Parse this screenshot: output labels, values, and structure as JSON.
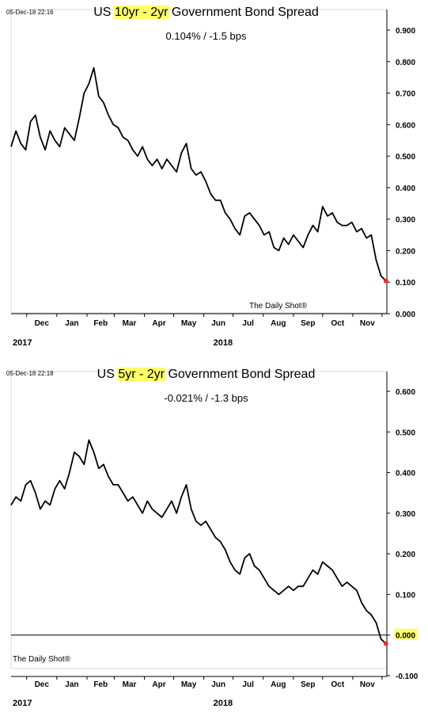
{
  "charts": [
    {
      "timestamp": "05-Dec-18 22:16",
      "title_prefix": "US ",
      "title_highlight": "10yr - 2yr",
      "title_suffix": " Government Bond Spread",
      "subtitle": "0.104%  /  -1.5 bps",
      "credit": "The Daily Shot®",
      "highlight_color": "#ffff66",
      "line_color": "#000000",
      "marker_color": "#e8312a"
    },
    {
      "timestamp": "05-Dec-18 22:18",
      "title_prefix": "US ",
      "title_highlight": "5yr - 2yr",
      "title_suffix": " Government Bond Spread",
      "subtitle": "-0.021%  /  -1.3 bps",
      "credit": "The Daily Shot®",
      "highlight_color": "#ffff66",
      "line_color": "#000000",
      "marker_color": "#e8312a",
      "highlighted_tick": "0.000"
    }
  ],
  "chart_data": [
    {
      "type": "line",
      "title": "US 10yr - 2yr Government Bond Spread",
      "x_start": "2017-11-15",
      "x_end": "2018-12-06",
      "ylim": [
        0.0,
        0.9
      ],
      "yticks": [
        "0.900",
        "0.800",
        "0.700",
        "0.600",
        "0.500",
        "0.400",
        "0.300",
        "0.200",
        "0.100",
        "0.000"
      ],
      "ytick_values": [
        0.9,
        0.8,
        0.7,
        0.6,
        0.5,
        0.4,
        0.3,
        0.2,
        0.1,
        0.0
      ],
      "months": [
        "Dec",
        "Jan",
        "Feb",
        "Mar",
        "Apr",
        "May",
        "Jun",
        "Jul",
        "Aug",
        "Sep",
        "Oct",
        "Nov"
      ],
      "month_dates": [
        "2017-12-01",
        "2018-01-01",
        "2018-02-01",
        "2018-03-01",
        "2018-04-01",
        "2018-05-01",
        "2018-06-01",
        "2018-07-01",
        "2018-08-01",
        "2018-09-01",
        "2018-10-01",
        "2018-11-01",
        "2018-12-01"
      ],
      "years": [
        {
          "label": "2017",
          "date": "2017-11-15"
        },
        {
          "label": "2018",
          "date": "2018-06-01"
        }
      ],
      "grid": false,
      "x": [
        "2017-11-15",
        "2017-11-20",
        "2017-11-25",
        "2017-11-30",
        "2017-12-05",
        "2017-12-10",
        "2017-12-15",
        "2017-12-20",
        "2017-12-25",
        "2017-12-30",
        "2018-01-04",
        "2018-01-09",
        "2018-01-14",
        "2018-01-19",
        "2018-01-24",
        "2018-01-29",
        "2018-02-03",
        "2018-02-08",
        "2018-02-13",
        "2018-02-18",
        "2018-02-23",
        "2018-02-28",
        "2018-03-05",
        "2018-03-10",
        "2018-03-15",
        "2018-03-20",
        "2018-03-25",
        "2018-03-30",
        "2018-04-04",
        "2018-04-09",
        "2018-04-14",
        "2018-04-19",
        "2018-04-24",
        "2018-04-29",
        "2018-05-04",
        "2018-05-09",
        "2018-05-14",
        "2018-05-19",
        "2018-05-24",
        "2018-05-29",
        "2018-06-03",
        "2018-06-08",
        "2018-06-13",
        "2018-06-18",
        "2018-06-23",
        "2018-06-28",
        "2018-07-03",
        "2018-07-08",
        "2018-07-13",
        "2018-07-18",
        "2018-07-23",
        "2018-07-28",
        "2018-08-02",
        "2018-08-07",
        "2018-08-12",
        "2018-08-17",
        "2018-08-22",
        "2018-08-27",
        "2018-09-01",
        "2018-09-06",
        "2018-09-11",
        "2018-09-16",
        "2018-09-21",
        "2018-09-26",
        "2018-10-01",
        "2018-10-06",
        "2018-10-11",
        "2018-10-16",
        "2018-10-21",
        "2018-10-26",
        "2018-10-31",
        "2018-11-05",
        "2018-11-10",
        "2018-11-15",
        "2018-11-20",
        "2018-11-25",
        "2018-11-30",
        "2018-12-05"
      ],
      "series": [
        {
          "values": [
            0.53,
            0.58,
            0.54,
            0.52,
            0.61,
            0.63,
            0.56,
            0.52,
            0.58,
            0.55,
            0.53,
            0.59,
            0.57,
            0.55,
            0.62,
            0.7,
            0.73,
            0.78,
            0.69,
            0.67,
            0.63,
            0.6,
            0.59,
            0.56,
            0.55,
            0.52,
            0.5,
            0.53,
            0.49,
            0.47,
            0.49,
            0.46,
            0.49,
            0.47,
            0.45,
            0.51,
            0.54,
            0.46,
            0.44,
            0.45,
            0.42,
            0.38,
            0.36,
            0.36,
            0.32,
            0.3,
            0.27,
            0.25,
            0.31,
            0.32,
            0.3,
            0.28,
            0.25,
            0.26,
            0.21,
            0.2,
            0.24,
            0.22,
            0.25,
            0.23,
            0.21,
            0.25,
            0.28,
            0.26,
            0.34,
            0.31,
            0.32,
            0.29,
            0.28,
            0.28,
            0.29,
            0.26,
            0.27,
            0.24,
            0.25,
            0.17,
            0.12,
            0.104
          ],
          "color": "#000000"
        }
      ],
      "last_point": {
        "x": "2018-12-05",
        "y": 0.104
      }
    },
    {
      "type": "line",
      "title": "US 5yr - 2yr Government Bond Spread",
      "x_start": "2017-11-15",
      "x_end": "2018-12-06",
      "ylim": [
        -0.1,
        0.6
      ],
      "yticks": [
        "0.600",
        "0.500",
        "0.400",
        "0.300",
        "0.200",
        "0.100",
        "0.000",
        "-0.100"
      ],
      "ytick_values": [
        0.6,
        0.5,
        0.4,
        0.3,
        0.2,
        0.1,
        0.0,
        -0.1
      ],
      "months": [
        "Dec",
        "Jan",
        "Feb",
        "Mar",
        "Apr",
        "May",
        "Jun",
        "Jul",
        "Aug",
        "Sep",
        "Oct",
        "Nov"
      ],
      "month_dates": [
        "2017-12-01",
        "2018-01-01",
        "2018-02-01",
        "2018-03-01",
        "2018-04-01",
        "2018-05-01",
        "2018-06-01",
        "2018-07-01",
        "2018-08-01",
        "2018-09-01",
        "2018-10-01",
        "2018-11-01",
        "2018-12-01"
      ],
      "years": [
        {
          "label": "2017",
          "date": "2017-11-15"
        },
        {
          "label": "2018",
          "date": "2018-06-01"
        }
      ],
      "grid": false,
      "zero_line": true,
      "x": [
        "2017-11-15",
        "2017-11-20",
        "2017-11-25",
        "2017-11-30",
        "2017-12-05",
        "2017-12-10",
        "2017-12-15",
        "2017-12-20",
        "2017-12-25",
        "2017-12-30",
        "2018-01-04",
        "2018-01-09",
        "2018-01-14",
        "2018-01-19",
        "2018-01-24",
        "2018-01-29",
        "2018-02-03",
        "2018-02-08",
        "2018-02-13",
        "2018-02-18",
        "2018-02-23",
        "2018-02-28",
        "2018-03-05",
        "2018-03-10",
        "2018-03-15",
        "2018-03-20",
        "2018-03-25",
        "2018-03-30",
        "2018-04-04",
        "2018-04-09",
        "2018-04-14",
        "2018-04-19",
        "2018-04-24",
        "2018-04-29",
        "2018-05-04",
        "2018-05-09",
        "2018-05-14",
        "2018-05-19",
        "2018-05-24",
        "2018-05-29",
        "2018-06-03",
        "2018-06-08",
        "2018-06-13",
        "2018-06-18",
        "2018-06-23",
        "2018-06-28",
        "2018-07-03",
        "2018-07-08",
        "2018-07-13",
        "2018-07-18",
        "2018-07-23",
        "2018-07-28",
        "2018-08-02",
        "2018-08-07",
        "2018-08-12",
        "2018-08-17",
        "2018-08-22",
        "2018-08-27",
        "2018-09-01",
        "2018-09-06",
        "2018-09-11",
        "2018-09-16",
        "2018-09-21",
        "2018-09-26",
        "2018-10-01",
        "2018-10-06",
        "2018-10-11",
        "2018-10-16",
        "2018-10-21",
        "2018-10-26",
        "2018-10-31",
        "2018-11-05",
        "2018-11-10",
        "2018-11-15",
        "2018-11-20",
        "2018-11-25",
        "2018-11-30",
        "2018-12-05"
      ],
      "series": [
        {
          "values": [
            0.32,
            0.34,
            0.33,
            0.37,
            0.38,
            0.35,
            0.31,
            0.33,
            0.32,
            0.36,
            0.38,
            0.36,
            0.4,
            0.45,
            0.44,
            0.42,
            0.48,
            0.45,
            0.41,
            0.42,
            0.39,
            0.37,
            0.37,
            0.35,
            0.33,
            0.34,
            0.32,
            0.3,
            0.33,
            0.31,
            0.3,
            0.29,
            0.31,
            0.33,
            0.3,
            0.34,
            0.37,
            0.31,
            0.28,
            0.27,
            0.28,
            0.26,
            0.24,
            0.23,
            0.21,
            0.18,
            0.16,
            0.15,
            0.19,
            0.2,
            0.17,
            0.16,
            0.14,
            0.12,
            0.11,
            0.1,
            0.11,
            0.12,
            0.11,
            0.12,
            0.12,
            0.14,
            0.16,
            0.15,
            0.18,
            0.17,
            0.16,
            0.14,
            0.12,
            0.13,
            0.12,
            0.11,
            0.08,
            0.06,
            0.05,
            0.03,
            -0.01,
            -0.021
          ],
          "color": "#000000"
        }
      ],
      "last_point": {
        "x": "2018-12-05",
        "y": -0.021
      }
    }
  ]
}
